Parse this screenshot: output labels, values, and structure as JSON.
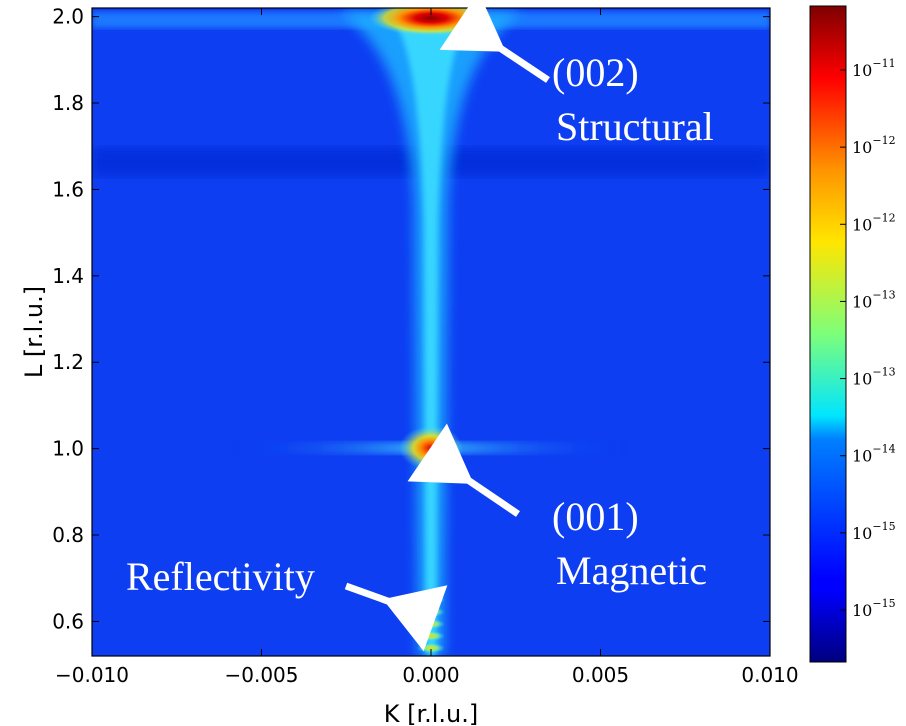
{
  "chart_data": {
    "type": "heatmap",
    "xlabel": "K [r.l.u.]",
    "ylabel": "L [r.l.u.]",
    "xlim": [
      -0.01,
      0.01
    ],
    "ylim": [
      0.52,
      2.02
    ],
    "x_ticks": [
      "−0.010",
      "−0.005",
      "0.000",
      "0.005",
      "0.010"
    ],
    "x_tick_values": [
      -0.01,
      -0.005,
      0.0,
      0.005,
      0.01
    ],
    "y_ticks": [
      "0.6",
      "0.8",
      "1.0",
      "1.2",
      "1.4",
      "1.6",
      "1.8",
      "2.0"
    ],
    "y_tick_values": [
      0.6,
      0.8,
      1.0,
      1.2,
      1.4,
      1.6,
      1.8,
      2.0
    ],
    "colormap": "jet",
    "colorbar_scale": "log",
    "colorbar_ticks": [
      {
        "base": "10",
        "exp": "−11"
      },
      {
        "base": "10",
        "exp": "−12"
      },
      {
        "base": "10",
        "exp": "−12"
      },
      {
        "base": "10",
        "exp": "−13"
      },
      {
        "base": "10",
        "exp": "−13"
      },
      {
        "base": "10",
        "exp": "−14"
      },
      {
        "base": "10",
        "exp": "−15"
      },
      {
        "base": "10",
        "exp": "−15"
      }
    ],
    "features": [
      {
        "name": "(002) Structural",
        "K": 0.0,
        "L": 2.0,
        "relative_intensity": 1.0
      },
      {
        "name": "(001) Magnetic",
        "K": 0.0,
        "L": 1.0,
        "relative_intensity": 0.8
      },
      {
        "name": "Reflectivity",
        "K": 0.0,
        "L": 0.58,
        "relative_intensity": 0.65
      }
    ],
    "annotations": [
      {
        "lines": [
          "(002)",
          "Structural"
        ],
        "points_to_K": 0.0008,
        "points_to_L": 1.96
      },
      {
        "lines": [
          "(001)",
          "Magnetic"
        ],
        "points_to_K": 0.0004,
        "points_to_L": 0.98
      },
      {
        "lines": [
          "Reflectivity"
        ],
        "points_to_K": 0.0,
        "points_to_L": 0.63
      }
    ]
  }
}
